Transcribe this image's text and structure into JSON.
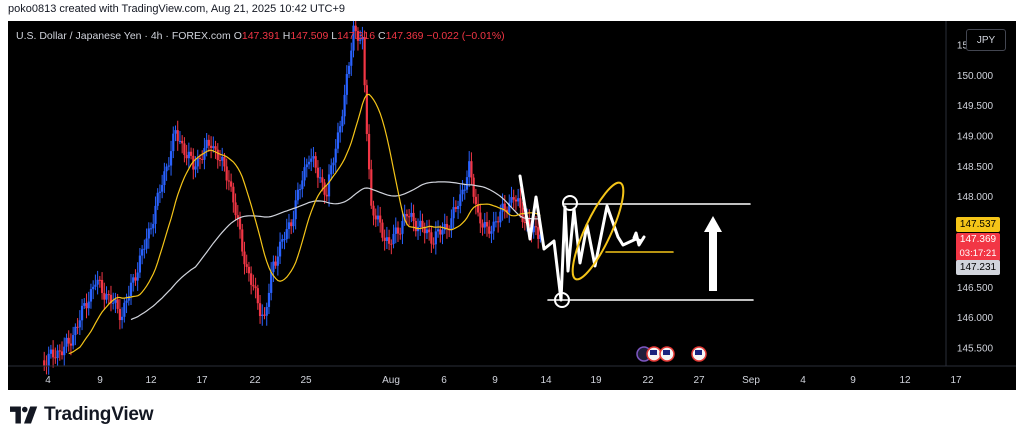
{
  "caption": "poko0813 created with TradingView.com, Aug 21, 2025 10:42 UTC+9",
  "symbol": {
    "title": "U.S. Dollar / Japanese Yen · 4h · FOREX.com",
    "open_key": "O",
    "open": "147.391",
    "high_key": "H",
    "high": "147.509",
    "low_key": "L",
    "low": "147.316",
    "close_key": "C",
    "close": "147.369",
    "change": "−0.022 (−0.01%)"
  },
  "currency_button": "JPY",
  "price_tags": {
    "ma_fast": "147.537",
    "last_price": "147.369",
    "countdown": "03:17:21",
    "ma_slow": "147.231"
  },
  "brand": "TradingView",
  "colors": {
    "background": "#000000",
    "up_candle": "#2962ff",
    "down_candle": "#f23645",
    "ma_fast": "#f5c518",
    "ma_slow": "#d1d4dc",
    "annotation": "#ffffff"
  },
  "chart_data": {
    "type": "candlestick",
    "timeframe": "4h",
    "ylim": [
      145.2,
      150.9
    ],
    "y_ticks": [
      "150.500",
      "150.000",
      "149.500",
      "149.000",
      "148.500",
      "148.000",
      "147.500",
      "147.000",
      "146.500",
      "146.000",
      "145.500"
    ],
    "x_ticks": [
      "4",
      "9",
      "12",
      "17",
      "22",
      "25",
      "Aug",
      "6",
      "9",
      "14",
      "19",
      "22",
      "27",
      "Sep",
      "4",
      "9",
      "12",
      "17"
    ],
    "anchors": [
      {
        "x": 0,
        "y": 145.25
      },
      {
        "x": 3,
        "y": 145.55
      },
      {
        "x": 6,
        "y": 146.6
      },
      {
        "x": 9,
        "y": 146.05
      },
      {
        "x": 12,
        "y": 147.4
      },
      {
        "x": 15,
        "y": 149.05
      },
      {
        "x": 17,
        "y": 148.5
      },
      {
        "x": 19,
        "y": 148.9
      },
      {
        "x": 21,
        "y": 148.3
      },
      {
        "x": 23,
        "y": 146.8
      },
      {
        "x": 25,
        "y": 145.95
      },
      {
        "x": 26,
        "y": 146.9
      },
      {
        "x": 28,
        "y": 147.6
      },
      {
        "x": 30,
        "y": 148.7
      },
      {
        "x": 32,
        "y": 148.05
      },
      {
        "x": 34,
        "y": 149.6
      },
      {
        "x": 35,
        "y": 150.8
      },
      {
        "x": 36,
        "y": 150.5
      },
      {
        "x": 37,
        "y": 147.8
      },
      {
        "x": 39,
        "y": 147.2
      },
      {
        "x": 41,
        "y": 147.7
      },
      {
        "x": 44,
        "y": 147.3
      },
      {
        "x": 46,
        "y": 147.6
      },
      {
        "x": 47,
        "y": 148.0
      },
      {
        "x": 48,
        "y": 148.45
      },
      {
        "x": 49,
        "y": 147.7
      },
      {
        "x": 50,
        "y": 147.4
      },
      {
        "x": 52,
        "y": 147.8
      },
      {
        "x": 53,
        "y": 148.0
      },
      {
        "x": 54,
        "y": 147.7
      },
      {
        "x": 55,
        "y": 147.45
      },
      {
        "x": 56,
        "y": 147.37
      }
    ],
    "ma_fast_level": 147.537,
    "ma_slow_level": 147.231,
    "last_price": 147.369,
    "legend": "none",
    "grid": false
  }
}
